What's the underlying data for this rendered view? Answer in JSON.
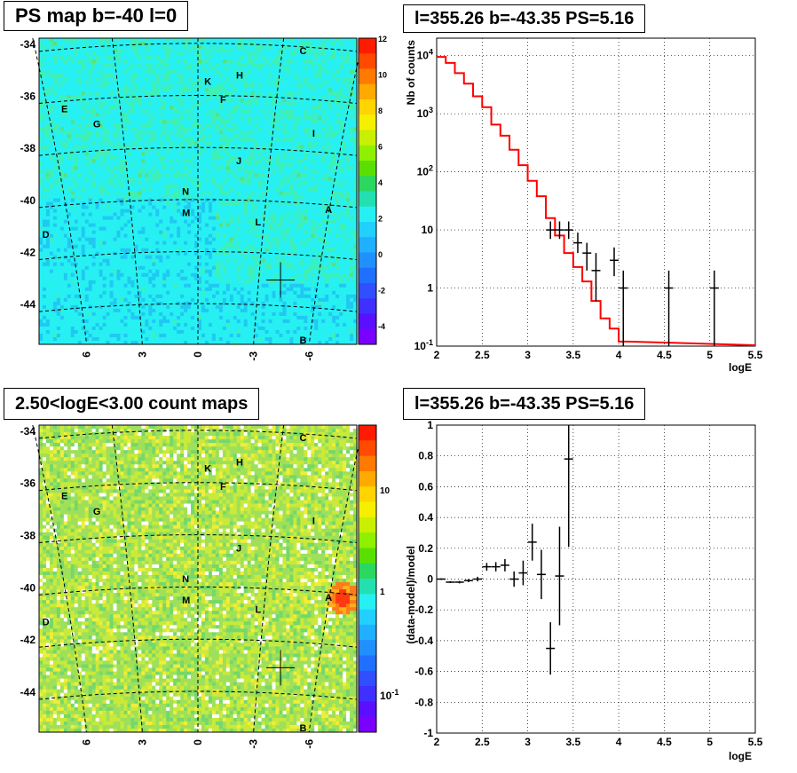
{
  "titles": {
    "map1": "PS map b=-40 l=0",
    "spectrum": "l=355.26 b=-43.35 PS=5.16",
    "map2": "2.50<logE<3.00 count maps",
    "residual": "l=355.26 b=-43.35 PS=5.16"
  },
  "colors": {
    "map1_background": "#27f0f2",
    "map2_background": "#9fe05a",
    "model_line": "#ff0000",
    "data_points": "#000000"
  },
  "chart_data": [
    {
      "type": "heatmap",
      "title": "PS map b=-40 l=0",
      "x_ticks": [
        "6",
        "3",
        "0",
        "-3",
        "-6"
      ],
      "y_ticks": [
        "-34",
        "-36",
        "-38",
        "-40",
        "-42",
        "-44"
      ],
      "colorbar_ticks": [
        "12",
        "10",
        "8",
        "6",
        "4",
        "2",
        "0",
        "-2",
        "-4"
      ],
      "colorbar_range": [
        -5,
        12
      ],
      "source_labels": [
        "A",
        "B",
        "C",
        "D",
        "E",
        "F",
        "G",
        "H",
        "I",
        "J",
        "K",
        "L",
        "M",
        "N"
      ],
      "marker": "cross"
    },
    {
      "type": "line",
      "title": "l=355.26 b=-43.35 PS=5.16",
      "xlabel": "logE",
      "ylabel": "Nb of counts",
      "xlim": [
        2,
        5.5
      ],
      "ylim": [
        0.1,
        20000
      ],
      "yscale": "log",
      "grid": true,
      "x_ticks": [
        "2",
        "2.5",
        "3",
        "3.5",
        "4",
        "4.5",
        "5",
        "5.5"
      ],
      "y_ticks": [
        "10^-1",
        "1",
        "10",
        "10^2",
        "10^3",
        "10^4"
      ],
      "model_step": {
        "edges": [
          2.0,
          2.1,
          2.2,
          2.3,
          2.4,
          2.5,
          2.6,
          2.7,
          2.8,
          2.9,
          3.0,
          3.1,
          3.2,
          3.3,
          3.4,
          3.5,
          3.6,
          3.7,
          3.8,
          3.9,
          4.0,
          4.1
        ],
        "values": [
          9500,
          7500,
          5000,
          3300,
          2000,
          1300,
          650,
          420,
          240,
          130,
          70,
          38,
          16,
          8,
          4,
          2.3,
          1.3,
          0.6,
          0.3,
          0.2,
          0.12
        ]
      },
      "points": [
        {
          "x": 3.25,
          "y": 10,
          "ylo": 7,
          "yhi": 14
        },
        {
          "x": 3.35,
          "y": 10,
          "ylo": 7,
          "yhi": 14
        },
        {
          "x": 3.45,
          "y": 10,
          "ylo": 7,
          "yhi": 14
        },
        {
          "x": 3.55,
          "y": 6,
          "ylo": 4,
          "yhi": 9
        },
        {
          "x": 3.65,
          "y": 4,
          "ylo": 2,
          "yhi": 6
        },
        {
          "x": 3.75,
          "y": 2,
          "ylo": 0.6,
          "yhi": 4
        },
        {
          "x": 3.95,
          "y": 3,
          "ylo": 1.6,
          "yhi": 5
        },
        {
          "x": 4.05,
          "y": 1,
          "ylo": 0.1,
          "yhi": 2
        },
        {
          "x": 4.55,
          "y": 1,
          "ylo": 0.1,
          "yhi": 2
        },
        {
          "x": 5.05,
          "y": 1,
          "ylo": 0.1,
          "yhi": 2
        }
      ]
    },
    {
      "type": "heatmap",
      "title": "2.50<logE<3.00 count maps",
      "x_ticks": [
        "6",
        "3",
        "0",
        "-3",
        "-6"
      ],
      "y_ticks": [
        "-34",
        "-36",
        "-38",
        "-40",
        "-42",
        "-44"
      ],
      "colorbar_ticks": [
        "10",
        "1",
        "10^-1"
      ],
      "colorbar_scale": "log",
      "source_labels": [
        "A",
        "B",
        "C",
        "D",
        "E",
        "F",
        "G",
        "H",
        "I",
        "J",
        "K",
        "L",
        "M",
        "N"
      ],
      "marker": "cross"
    },
    {
      "type": "scatter",
      "title": "l=355.26 b=-43.35 PS=5.16",
      "xlabel": "logE",
      "ylabel": "(data-model)/model",
      "xlim": [
        2,
        5.5
      ],
      "ylim": [
        -1,
        1
      ],
      "grid": true,
      "x_ticks": [
        "2",
        "2.5",
        "3",
        "3.5",
        "4",
        "4.5",
        "5",
        "5.5"
      ],
      "y_ticks": [
        "-1",
        "-0.8",
        "-0.6",
        "-0.4",
        "-0.2",
        "0",
        "0.2",
        "0.4",
        "0.6",
        "0.8",
        "1"
      ],
      "points": [
        {
          "x": 2.05,
          "y": 0.0,
          "err": 0.005
        },
        {
          "x": 2.15,
          "y": -0.02,
          "err": 0.006
        },
        {
          "x": 2.25,
          "y": -0.02,
          "err": 0.008
        },
        {
          "x": 2.35,
          "y": -0.01,
          "err": 0.01
        },
        {
          "x": 2.45,
          "y": 0.0,
          "err": 0.015
        },
        {
          "x": 2.55,
          "y": 0.08,
          "err": 0.025
        },
        {
          "x": 2.65,
          "y": 0.08,
          "err": 0.03
        },
        {
          "x": 2.75,
          "y": 0.09,
          "err": 0.04
        },
        {
          "x": 2.85,
          "y": 0.0,
          "err": 0.05
        },
        {
          "x": 2.95,
          "y": 0.04,
          "err": 0.08
        },
        {
          "x": 3.05,
          "y": 0.24,
          "err": 0.12
        },
        {
          "x": 3.15,
          "y": 0.03,
          "err": 0.16
        },
        {
          "x": 3.25,
          "y": -0.45,
          "err": 0.17
        },
        {
          "x": 3.35,
          "y": 0.02,
          "err": 0.32
        },
        {
          "x": 3.45,
          "y": 0.78,
          "err": 0.57
        }
      ]
    }
  ]
}
